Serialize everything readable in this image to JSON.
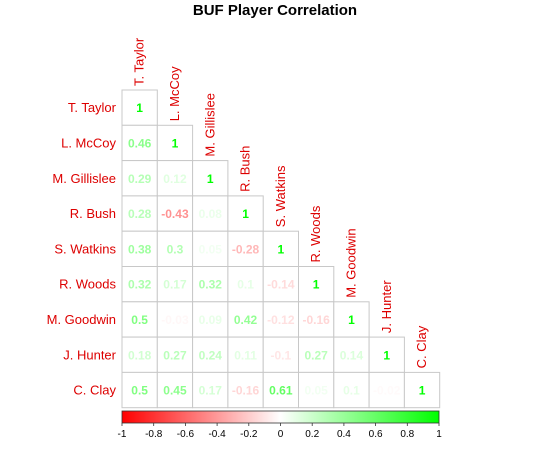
{
  "chart_data": {
    "type": "heatmap",
    "title": "BUF Player Correlation",
    "labels": [
      "T. Taylor",
      "L. McCoy",
      "M. Gillislee",
      "R. Bush",
      "S. Watkins",
      "R. Woods",
      "M. Goodwin",
      "J. Hunter",
      "C. Clay"
    ],
    "matrix": [
      [
        1
      ],
      [
        0.46,
        1
      ],
      [
        0.29,
        0.12,
        1
      ],
      [
        0.28,
        -0.43,
        0.08,
        1
      ],
      [
        0.38,
        0.3,
        0.05,
        -0.28,
        1
      ],
      [
        0.32,
        0.17,
        0.32,
        0.1,
        -0.14,
        1
      ],
      [
        0.5,
        -0.03,
        0.09,
        0.42,
        -0.12,
        -0.16,
        1
      ],
      [
        0.18,
        0.27,
        0.24,
        0.11,
        -0.1,
        0.27,
        0.14,
        1
      ],
      [
        0.5,
        0.45,
        0.17,
        -0.16,
        0.61,
        0.05,
        0.1,
        -0.02,
        1
      ]
    ],
    "display_values": [
      [
        "1"
      ],
      [
        "0.46",
        "1"
      ],
      [
        "0.29",
        "0.12",
        "1"
      ],
      [
        "0.28",
        "-0.43",
        "0.08",
        "1"
      ],
      [
        "0.38",
        "0.3",
        "0.05",
        "-0.28",
        "1"
      ],
      [
        "0.32",
        "0.17",
        "0.32",
        "0.1",
        "-0.14",
        "1"
      ],
      [
        "0.5",
        "-0.03",
        "0.09",
        "0.42",
        "-0.12",
        "-0.16",
        "1"
      ],
      [
        "0.18",
        "0.27",
        "0.24",
        "0.11",
        "-0.1",
        "0.27",
        "0.14",
        "1"
      ],
      [
        "0.5",
        "0.45",
        "0.17",
        "-0.16",
        "0.61",
        "0.05",
        "0.1",
        "-0.02",
        "1"
      ]
    ],
    "color_scale": {
      "range": [
        -1,
        1
      ],
      "low_color": "#ff0000",
      "mid_color": "#ffffff",
      "high_color": "#00ff00",
      "ticks": [
        -1,
        -0.8,
        -0.6,
        -0.4,
        -0.2,
        0,
        0.2,
        0.4,
        0.6,
        0.8,
        1
      ]
    },
    "label_color": "#dd0000",
    "legend": "bottom"
  }
}
